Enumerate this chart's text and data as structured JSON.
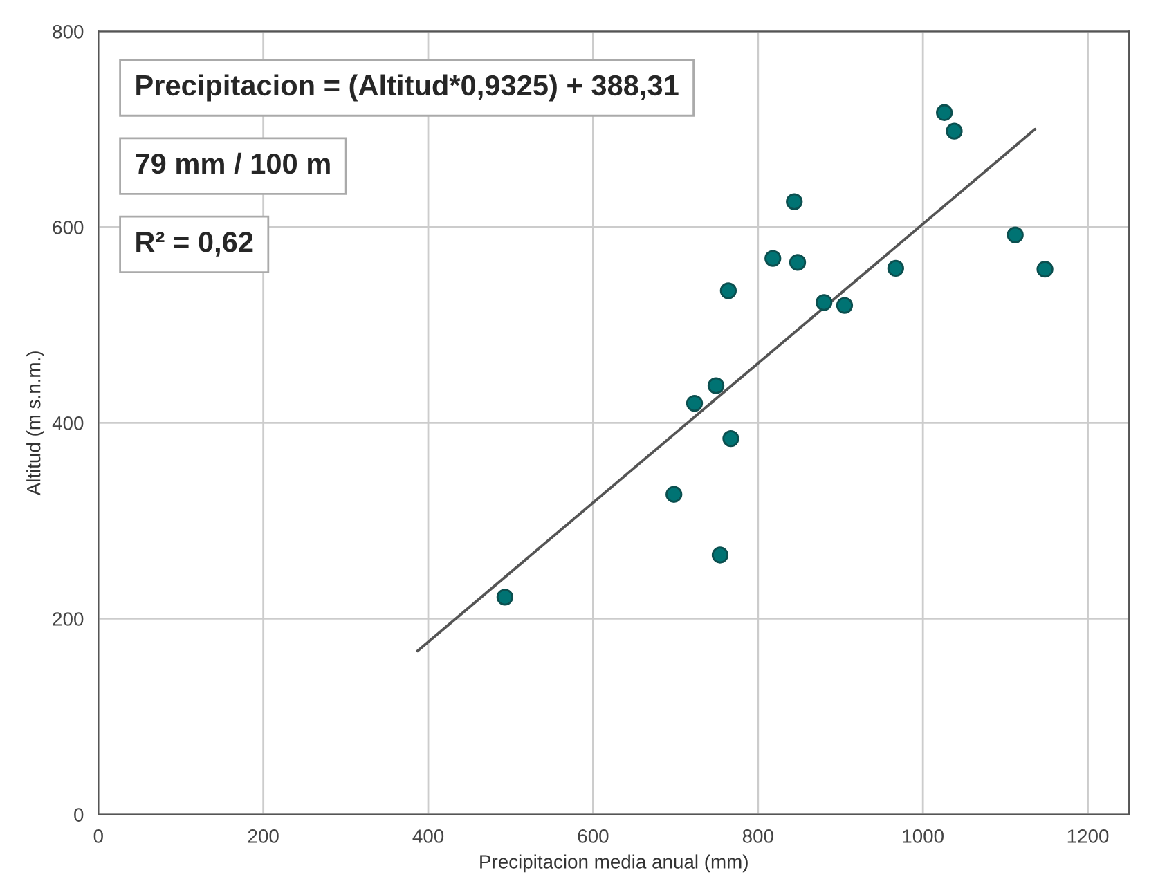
{
  "chart_data": {
    "type": "scatter",
    "xlabel": "Precipitacion media anual (mm)",
    "ylabel": "Altitud (m s.n.m.)",
    "xlim": [
      0,
      1250
    ],
    "xticks": [
      0,
      200,
      400,
      600,
      800,
      1000,
      1200
    ],
    "ylim": [
      0,
      800
    ],
    "yticks": [
      0,
      200,
      400,
      600,
      800
    ],
    "grid": true,
    "marker": "circle",
    "series": [
      {
        "color": "#007373",
        "x": [
          493,
          698,
          723,
          749,
          754,
          764,
          767,
          818,
          844,
          848,
          880,
          905,
          967,
          1026,
          1038,
          1112,
          1148
        ],
        "values": [
          222,
          327,
          420,
          438,
          265,
          535,
          384,
          568,
          626,
          564,
          523,
          520,
          558,
          717,
          698,
          592,
          557
        ]
      },
      {
        "type": "line",
        "color": "#555555",
        "line_style": "solid",
        "marker": "none",
        "x": [
          387,
          1136
        ],
        "values": [
          167,
          700
        ]
      }
    ],
    "annotations": [
      "Precipitacion = (Altitud*0,9325) + 388,31",
      "79 mm / 100 m",
      "R² = 0,62"
    ]
  }
}
